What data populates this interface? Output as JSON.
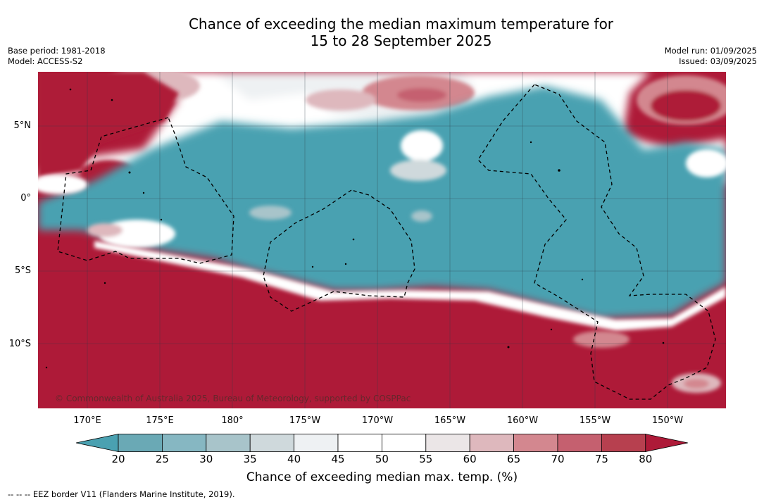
{
  "title_line1": "Chance of exceeding the median maximum temperature for",
  "title_line2": "15 to 28 September 2025",
  "meta_left": [
    "Base period: 1981-2018",
    "Model: ACCESS-S2"
  ],
  "meta_right": [
    "Model run: 01/09/2025",
    "Issued: 03/09/2025"
  ],
  "copyright": "© Commonwealth of Australia 2025, Bureau of Meteorology, supported by COSPPac",
  "lat_labels": [
    "5°N",
    "0°",
    "5°S",
    "10°S"
  ],
  "lon_labels": [
    "170°E",
    "175°E",
    "180°",
    "175°W",
    "170°W",
    "165°W",
    "160°W",
    "155°W",
    "150°W"
  ],
  "colorbar": {
    "label": "Chance of exceeding median max. temp. (%)",
    "ticks": [
      "20",
      "25",
      "30",
      "35",
      "40",
      "45",
      "50",
      "55",
      "60",
      "65",
      "70",
      "75",
      "80"
    ],
    "colors": [
      "#4aa1b1",
      "#6aa9b5",
      "#86b7c2",
      "#a8c4ca",
      "#cfd9dc",
      "#eef1f3",
      "#ffffff",
      "#ffffff",
      "#ebe6e7",
      "#deb8bd",
      "#d3878f",
      "#c5606f",
      "#b7404f",
      "#ae1a38"
    ]
  },
  "footer": "--  --  -- EEZ border V11 (Flanders Marine Institute, 2019)."
}
